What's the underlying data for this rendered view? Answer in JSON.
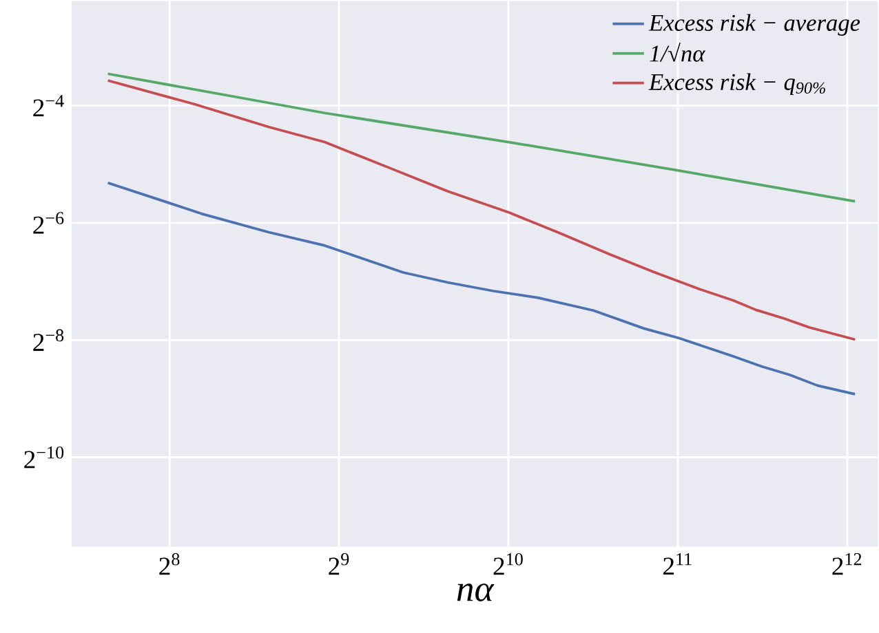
{
  "chart_data": {
    "type": "line",
    "xlabel": "nα",
    "xlim": [
      171.4,
      4646
    ],
    "ylim": [
      0.000339,
      0.2155
    ],
    "log": "xy",
    "grid": true,
    "legend": "top right",
    "xticks": [
      {
        "value": 256,
        "label": "2$^{8}$"
      },
      {
        "value": 512,
        "label": "2$^{9}$"
      },
      {
        "value": 1024,
        "label": "2$^{10}$"
      },
      {
        "value": 2048,
        "label": "2$^{11}$"
      },
      {
        "value": 4096,
        "label": "2$^{12}$"
      }
    ],
    "yticks": [
      {
        "value": 0.0009765625,
        "label": "2$^{−10}$"
      },
      {
        "value": 0.00390625,
        "label": "2$^{−8}$"
      },
      {
        "value": 0.015625,
        "label": "2$^{−6}$"
      },
      {
        "value": 0.0625,
        "label": "2$^{−4}$"
      }
    ],
    "series": [
      {
        "name": "Excess risk − average",
        "color": "#4c72b0",
        "x": [
          198.9,
          254.2,
          291.6,
          384,
          483,
          665.7,
          799,
          960,
          1154,
          1450,
          1783,
          2055,
          2572,
          2884,
          3236,
          3628,
          4229
        ],
        "values": [
          0.02507,
          0.01987,
          0.01741,
          0.01399,
          0.01194,
          0.00869,
          0.00772,
          0.00699,
          0.00645,
          0.00554,
          0.00448,
          0.004,
          0.00322,
          0.00286,
          0.00259,
          0.00228,
          0.00206
        ]
      },
      {
        "name": "1/√nα",
        "color": "#55a868",
        "x": [
          198.9,
          483,
          1026,
          2055,
          4229
        ],
        "values": [
          0.0911,
          0.0573,
          0.0406,
          0.029,
          0.02016
        ]
      },
      {
        "name": "Excess risk − q$_{90%}$",
        "color": "#c44e52",
        "x": [
          198.9,
          285,
          384,
          483,
          635.5,
          799,
          1026,
          1265,
          1554,
          1845,
          2243,
          2572,
          2819,
          3160,
          3504,
          4229
        ],
        "values": [
          0.0842,
          0.0633,
          0.0486,
          0.0406,
          0.0296,
          0.0227,
          0.01766,
          0.01381,
          0.01074,
          0.0088,
          0.00712,
          0.00624,
          0.00558,
          0.00505,
          0.00454,
          0.00393
        ]
      }
    ]
  }
}
